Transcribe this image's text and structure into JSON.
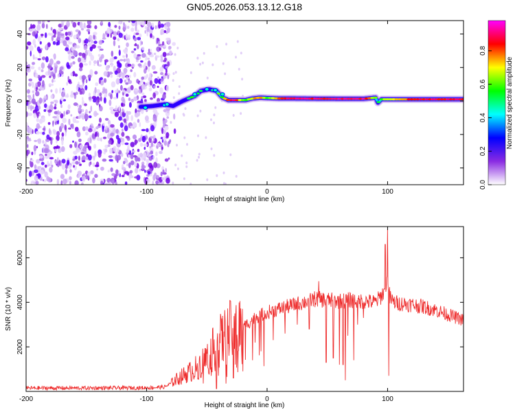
{
  "title": "GN05.2026.053.13.12.G18",
  "colors": {
    "snr_line": "#ee2c2c",
    "axis": "#000000"
  },
  "chart_data": [
    {
      "type": "heatmap",
      "xlabel": "Height of straight line (km)",
      "ylabel": "Frequency (Hz)",
      "xlim": [
        -200,
        163
      ],
      "ylim": [
        -50,
        48
      ],
      "x_ticks": [
        -200,
        -100,
        0,
        100
      ],
      "y_ticks": [
        -40,
        -20,
        0,
        20,
        40
      ],
      "colorbar": {
        "label": "Normalized spectral amplitude",
        "range": [
          0,
          0.98
        ],
        "ticks": [
          0.0,
          0.2,
          0.4,
          0.6,
          0.8
        ],
        "colors": [
          "#ffffff",
          "#8a2be2",
          "#0000ff",
          "#00ffff",
          "#00ff00",
          "#ffff00",
          "#ff0000",
          "#ff00ff"
        ]
      },
      "noise_region_x": [
        -200,
        -80
      ],
      "ridge": {
        "x": [
          -105,
          -95,
          -85,
          -78,
          -70,
          -60,
          -55,
          -48,
          -42,
          -37,
          -32,
          -28,
          -25,
          -22,
          -18,
          -12,
          -6,
          0,
          10,
          20,
          40,
          60,
          80,
          90,
          92,
          95,
          120,
          163
        ],
        "freq": [
          -3.5,
          -3,
          -2,
          -3,
          0,
          3,
          6,
          7,
          6,
          2,
          0.5,
          0.5,
          0.5,
          0.5,
          0.5,
          1.5,
          2,
          1.8,
          1.5,
          1.5,
          1.4,
          1.3,
          1.3,
          2,
          -1,
          1,
          1,
          1
        ],
        "amplitude": [
          0.25,
          0.3,
          0.35,
          0.3,
          0.45,
          0.55,
          0.5,
          0.45,
          0.55,
          0.6,
          0.85,
          0.9,
          0.85,
          0.7,
          0.6,
          0.7,
          0.8,
          0.55,
          0.85,
          0.9,
          0.9,
          0.9,
          0.9,
          0.6,
          0.5,
          0.6,
          0.85,
          0.9
        ]
      }
    },
    {
      "type": "line",
      "xlabel": "Height of straight line (km)",
      "ylabel": "SNR (10 * v/v)",
      "xlim": [
        -200,
        163
      ],
      "ylim": [
        0,
        7400
      ],
      "x_ticks": [
        -200,
        -100,
        0,
        100
      ],
      "y_ticks": [
        2000,
        4000,
        6000
      ],
      "series": [
        {
          "name": "SNR",
          "x": [
            -200,
            -150,
            -100,
            -85,
            -80,
            -75,
            -70,
            -60,
            -50,
            -40,
            -30,
            -20,
            -10,
            0,
            10,
            20,
            30,
            40,
            50,
            60,
            70,
            80,
            90,
            95,
            98,
            100,
            102,
            105,
            110,
            120,
            130,
            140,
            150,
            163
          ],
          "y": [
            150,
            150,
            160,
            200,
            350,
            550,
            700,
            1000,
            1500,
            2200,
            2700,
            2900,
            3300,
            3550,
            3700,
            3850,
            4000,
            4150,
            4100,
            4050,
            4100,
            4050,
            4000,
            4300,
            4600,
            5000,
            4200,
            4000,
            3950,
            3900,
            3800,
            3650,
            3450,
            3200
          ]
        }
      ],
      "spikes": [
        {
          "x": 100,
          "y": 7300
        },
        {
          "x": 98,
          "y": 6600
        },
        {
          "x": 101,
          "y": 700
        },
        {
          "x": 43,
          "y": 4950
        }
      ],
      "dips": [
        {
          "x": -42,
          "y": 120
        },
        {
          "x": -34,
          "y": 350
        },
        {
          "x": -28,
          "y": 600
        },
        {
          "x": -20,
          "y": 900
        },
        {
          "x": -12,
          "y": 1400
        },
        {
          "x": -5,
          "y": 1800
        },
        {
          "x": 5,
          "y": 2300
        },
        {
          "x": 15,
          "y": 2600
        },
        {
          "x": 25,
          "y": 3000
        },
        {
          "x": 35,
          "y": 2800
        },
        {
          "x": 43,
          "y": 1700
        },
        {
          "x": 49,
          "y": 1300
        },
        {
          "x": 55,
          "y": 1500
        },
        {
          "x": 60,
          "y": 1200
        },
        {
          "x": 63,
          "y": 1200
        },
        {
          "x": 65,
          "y": 500
        },
        {
          "x": 67,
          "y": 2500
        },
        {
          "x": 72,
          "y": 1400
        },
        {
          "x": 75,
          "y": 3000
        },
        {
          "x": 80,
          "y": 3300
        }
      ]
    }
  ]
}
